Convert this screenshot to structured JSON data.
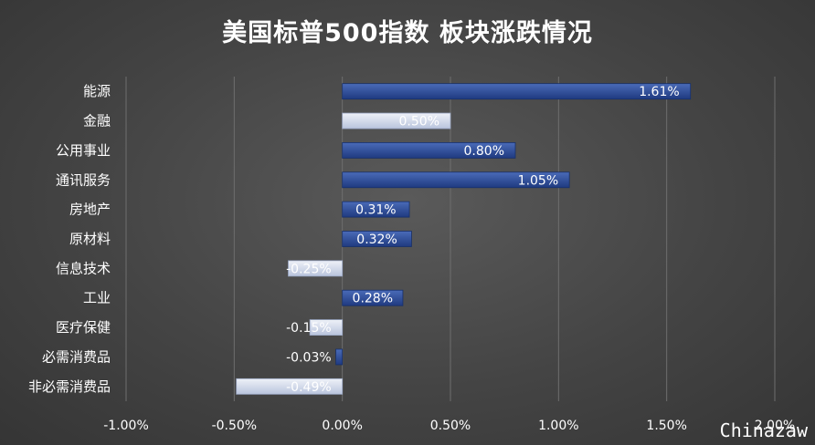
{
  "chart_data": {
    "type": "bar",
    "orientation": "horizontal",
    "title": "美国标普500指数 板块涨跌情况",
    "categories": [
      "能源",
      "金融",
      "公用事业",
      "通讯服务",
      "房地产",
      "原材料",
      "信息技术",
      "工业",
      "医疗保健",
      "必需消费品",
      "非必需消费品"
    ],
    "values": [
      1.61,
      0.5,
      0.8,
      1.05,
      0.31,
      0.32,
      -0.25,
      0.28,
      -0.15,
      -0.03,
      -0.49
    ],
    "data_labels": [
      "1.61%",
      "0.50%",
      "0.80%",
      "1.05%",
      "0.31%",
      "0.32%",
      "-0.25%",
      "0.28%",
      "-0.15%",
      "-0.03%",
      "-0.49%"
    ],
    "bar_styles": [
      "dark",
      "light",
      "dark",
      "dark",
      "dark",
      "dark",
      "light",
      "dark",
      "light",
      "dark",
      "light"
    ],
    "xlim": [
      -1.0,
      2.0
    ],
    "xticks": [
      -1.0,
      -0.5,
      0.0,
      0.5,
      1.0,
      1.5,
      2.0
    ],
    "xtick_labels": [
      "-1.00%",
      "-0.50%",
      "0.00%",
      "0.50%",
      "1.00%",
      "1.50%",
      "2.00%"
    ],
    "grid": "vertical",
    "colors": {
      "dark_bar_top": "#4a6bb8",
      "dark_bar_bottom": "#1f3a80",
      "light_bar_top": "#eef1f8",
      "light_bar_bottom": "#b9c4dd",
      "grid": "#6e6e6e",
      "text": "#ffffff"
    }
  },
  "watermark": "Chinazaw"
}
